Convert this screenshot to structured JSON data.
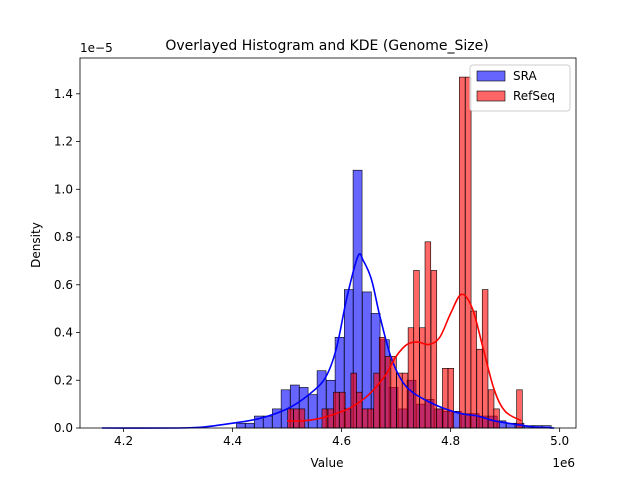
{
  "chart_data": {
    "type": "histogram",
    "title": "Overlayed Histogram and KDE (Genome_Size)",
    "xlabel": "Value",
    "ylabel": "Density",
    "x_offset_label": "1e6",
    "y_offset_label": "1e−5",
    "xlim": [
      4.12,
      5.03
    ],
    "ylim": [
      0,
      1.55
    ],
    "xticks": [
      4.2,
      4.4,
      4.6,
      4.8,
      5.0
    ],
    "xtick_labels": [
      "4.2",
      "4.4",
      "4.6",
      "4.8",
      "5.0"
    ],
    "yticks": [
      0,
      0.2,
      0.4,
      0.6,
      0.8,
      1.0,
      1.2,
      1.4
    ],
    "ytick_labels": [
      "0.0",
      "0.2",
      "0.4",
      "0.6",
      "0.8",
      "1.0",
      "1.2",
      "1.4"
    ],
    "grid": false,
    "legend_position": "top-right",
    "series": [
      {
        "name": "SRA",
        "color": "#0000ff",
        "bin_width": 0.0165,
        "bins": [
          [
            4.159,
            0.0
          ],
          [
            4.176,
            0.0
          ],
          [
            4.192,
            0.0
          ],
          [
            4.209,
            0.0
          ],
          [
            4.225,
            0.0
          ],
          [
            4.242,
            0.0
          ],
          [
            4.258,
            0.0
          ],
          [
            4.275,
            0.0
          ],
          [
            4.291,
            0.0
          ],
          [
            4.308,
            0.0
          ],
          [
            4.324,
            0.0
          ],
          [
            4.341,
            0.0
          ],
          [
            4.357,
            0.0
          ],
          [
            4.374,
            0.0
          ],
          [
            4.39,
            0.0
          ],
          [
            4.407,
            0.02
          ],
          [
            4.423,
            0.02
          ],
          [
            4.44,
            0.05
          ],
          [
            4.456,
            0.05
          ],
          [
            4.473,
            0.08
          ],
          [
            4.489,
            0.16
          ],
          [
            4.506,
            0.18
          ],
          [
            4.522,
            0.17
          ],
          [
            4.539,
            0.14
          ],
          [
            4.555,
            0.24
          ],
          [
            4.572,
            0.2
          ],
          [
            4.588,
            0.38
          ],
          [
            4.605,
            0.58
          ],
          [
            4.621,
            1.08
          ],
          [
            4.638,
            0.57
          ],
          [
            4.654,
            0.48
          ],
          [
            4.671,
            0.37
          ],
          [
            4.687,
            0.17
          ],
          [
            4.704,
            0.08
          ],
          [
            4.72,
            0.2
          ],
          [
            4.737,
            0.1
          ],
          [
            4.753,
            0.12
          ],
          [
            4.77,
            0.08
          ],
          [
            4.786,
            0.07
          ],
          [
            4.803,
            0.07
          ],
          [
            4.819,
            0.06
          ],
          [
            4.836,
            0.06
          ],
          [
            4.852,
            0.05
          ],
          [
            4.869,
            0.05
          ],
          [
            4.885,
            0.03
          ],
          [
            4.902,
            0.02
          ],
          [
            4.918,
            0.02
          ],
          [
            4.935,
            0.01
          ],
          [
            4.951,
            0.01
          ],
          [
            4.968,
            0.01
          ]
        ],
        "kde": [
          [
            4.16,
            0.0
          ],
          [
            4.3,
            0.0
          ],
          [
            4.35,
            0.005
          ],
          [
            4.4,
            0.02
          ],
          [
            4.45,
            0.04
          ],
          [
            4.5,
            0.08
          ],
          [
            4.54,
            0.14
          ],
          [
            4.57,
            0.21
          ],
          [
            4.59,
            0.33
          ],
          [
            4.61,
            0.55
          ],
          [
            4.63,
            0.72
          ],
          [
            4.64,
            0.7
          ],
          [
            4.655,
            0.62
          ],
          [
            4.67,
            0.47
          ],
          [
            4.69,
            0.3
          ],
          [
            4.71,
            0.2
          ],
          [
            4.73,
            0.15
          ],
          [
            4.76,
            0.11
          ],
          [
            4.79,
            0.08
          ],
          [
            4.82,
            0.06
          ],
          [
            4.85,
            0.05
          ],
          [
            4.88,
            0.03
          ],
          [
            4.92,
            0.015
          ],
          [
            4.95,
            0.005
          ],
          [
            4.99,
            0.0
          ]
        ]
      },
      {
        "name": "RefSeq",
        "color": "#ff0000",
        "bin_width": 0.0105,
        "bins": [
          [
            4.501,
            0.08
          ],
          [
            4.512,
            0.08
          ],
          [
            4.522,
            0.08
          ],
          [
            4.533,
            0.0
          ],
          [
            4.543,
            0.0
          ],
          [
            4.554,
            0.0
          ],
          [
            4.564,
            0.08
          ],
          [
            4.575,
            0.08
          ],
          [
            4.585,
            0.15
          ],
          [
            4.596,
            0.15
          ],
          [
            4.606,
            0.08
          ],
          [
            4.617,
            0.23
          ],
          [
            4.627,
            0.15
          ],
          [
            4.638,
            0.08
          ],
          [
            4.648,
            0.08
          ],
          [
            4.659,
            0.23
          ],
          [
            4.669,
            0.38
          ],
          [
            4.68,
            0.3
          ],
          [
            4.69,
            0.3
          ],
          [
            4.701,
            0.23
          ],
          [
            4.711,
            0.23
          ],
          [
            4.722,
            0.42
          ],
          [
            4.732,
            0.66
          ],
          [
            4.743,
            0.42
          ],
          [
            4.753,
            0.78
          ],
          [
            4.764,
            0.66
          ],
          [
            4.774,
            0.08
          ],
          [
            4.785,
            0.25
          ],
          [
            4.795,
            0.25
          ],
          [
            4.806,
            0.0
          ],
          [
            4.816,
            1.47
          ],
          [
            4.827,
            1.47
          ],
          [
            4.837,
            0.49
          ],
          [
            4.848,
            0.33
          ],
          [
            4.858,
            0.58
          ],
          [
            4.869,
            0.16
          ],
          [
            4.879,
            0.08
          ],
          [
            4.89,
            0.0
          ],
          [
            4.9,
            0.0
          ],
          [
            4.911,
            0.0
          ],
          [
            4.921,
            0.16
          ]
        ],
        "kde": [
          [
            4.5,
            0.03
          ],
          [
            4.53,
            0.03
          ],
          [
            4.56,
            0.04
          ],
          [
            4.59,
            0.06
          ],
          [
            4.62,
            0.09
          ],
          [
            4.65,
            0.14
          ],
          [
            4.68,
            0.22
          ],
          [
            4.7,
            0.3
          ],
          [
            4.72,
            0.35
          ],
          [
            4.74,
            0.36
          ],
          [
            4.76,
            0.35
          ],
          [
            4.78,
            0.38
          ],
          [
            4.8,
            0.48
          ],
          [
            4.82,
            0.56
          ],
          [
            4.84,
            0.5
          ],
          [
            4.86,
            0.33
          ],
          [
            4.88,
            0.16
          ],
          [
            4.9,
            0.07
          ],
          [
            4.93,
            0.03
          ]
        ]
      }
    ]
  }
}
